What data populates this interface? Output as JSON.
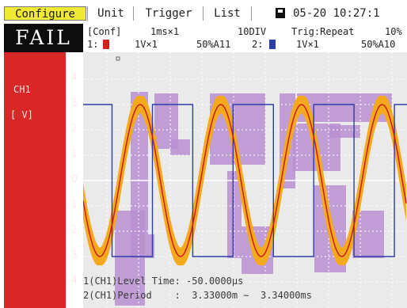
{
  "menu": {
    "configure": "Configure",
    "unit": "Unit",
    "trigger": "Trigger",
    "list": "List",
    "datetime": "05-20 10:27:1",
    "save_icon": "floppy-icon"
  },
  "judgement": "FAIL",
  "settings": {
    "conf": "[Conf]",
    "timebase": "1ms×1",
    "div": "10DIV",
    "trig": "Trig:Repeat",
    "pct": "10%"
  },
  "channels": [
    {
      "index": "1:",
      "scale": "1V×1",
      "pos": "50%A11",
      "color": "#d81e1e"
    },
    {
      "index": "2:",
      "scale": "1V×1",
      "pos": "50%A10",
      "color": "#2c3da8"
    }
  ],
  "panel": {
    "channel_label": "CH1",
    "unit_label": "[ V]",
    "yticks": [
      "4",
      "3",
      "2",
      "1",
      "0",
      "-1",
      "-2",
      "-3",
      "-4"
    ]
  },
  "readouts": {
    "line1": "1(CH1)Level Time: -50.0000μs",
    "line2": "2(CH1)Period    :  3.33000m ∼  3.34000ms"
  },
  "chart_data": {
    "type": "line",
    "ylim": [
      -5,
      5
    ],
    "colors": {
      "sine": "#c81e1e",
      "sine_band": "#f5a91c",
      "square": "#2c3da8",
      "mask": "#b98fd0",
      "grid": "#ffffff"
    },
    "series": [
      {
        "name": "CH1",
        "amplitude": 3,
        "period_div": 3.34,
        "band_halfwidth": 0.55
      },
      {
        "name": "CH2",
        "high": 3,
        "low": -3,
        "period_div": 3.34,
        "duty": 0.5
      }
    ]
  }
}
